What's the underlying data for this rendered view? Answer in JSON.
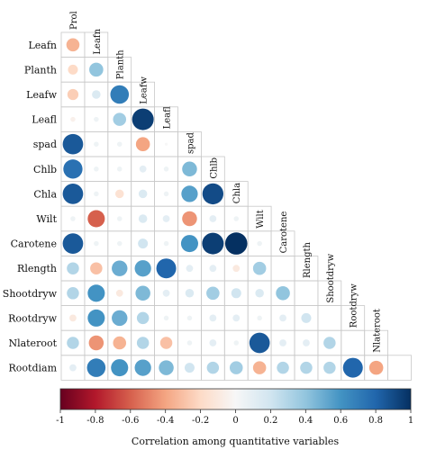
{
  "chart_data": {
    "type": "heatmap",
    "variables": [
      "Prol",
      "Leafn",
      "Planth",
      "Leafw",
      "Leafl",
      "spad",
      "Chlb",
      "Chla",
      "Wilt",
      "Carotene",
      "Rlength",
      "Shootdryw",
      "Rootdryw",
      "Nlateroot",
      "Rootdiam"
    ],
    "row_labels": [
      "Leafn",
      "Planth",
      "Leafw",
      "Leafl",
      "spad",
      "Chlb",
      "Chla",
      "Wilt",
      "Carotene",
      "Rlength",
      "Shootdryw",
      "Rootdryw",
      "Nlateroot",
      "Rootdiam"
    ],
    "column_labels": [
      "Prol",
      "Leafn",
      "Planth",
      "Leafw",
      "Leafl",
      "spad",
      "Chlb",
      "Chla",
      "Wilt",
      "Carotene",
      "Rlength",
      "Shootdryw",
      "Rootdryw",
      "Nlateroot"
    ],
    "correlations": [
      [
        -0.35
      ],
      [
        -0.2,
        0.4
      ],
      [
        -0.25,
        0.15,
        0.7
      ],
      [
        -0.05,
        0.05,
        0.35,
        0.95
      ],
      [
        0.85,
        0.05,
        0.05,
        -0.4,
        0.0
      ],
      [
        0.75,
        0.05,
        0.05,
        0.1,
        0.05,
        0.45
      ],
      [
        0.85,
        0.05,
        -0.15,
        0.15,
        0.05,
        0.55,
        0.9
      ],
      [
        0.05,
        -0.6,
        0.05,
        0.15,
        0.1,
        -0.45,
        0.1,
        0.05
      ],
      [
        0.85,
        0.05,
        0.05,
        0.2,
        0.05,
        0.6,
        0.95,
        1.0,
        0.05
      ],
      [
        0.3,
        -0.3,
        0.5,
        0.55,
        0.8,
        0.1,
        0.1,
        -0.1,
        0.35
      ],
      [
        0.3,
        0.6,
        -0.1,
        0.45,
        0.1,
        0.15,
        0.35,
        0.2,
        0.15,
        0.4
      ],
      [
        -0.1,
        0.6,
        0.5,
        0.3,
        0.05,
        0.05,
        0.1,
        0.1,
        0.05,
        0.1,
        0.2
      ],
      [
        0.3,
        -0.45,
        -0.35,
        0.3,
        -0.3,
        0.05,
        0.1,
        0.05,
        0.85,
        0.1,
        0.1,
        0.3
      ],
      [
        0.1,
        0.7,
        0.6,
        0.55,
        0.45,
        0.2,
        0.3,
        0.35,
        -0.35,
        0.3,
        0.3,
        0.3,
        0.8,
        -0.4
      ]
    ],
    "colorbar": {
      "range": [
        -1,
        1
      ],
      "ticks": [
        "-1",
        "-0.8",
        "-0.6",
        "-0.4",
        "-0.2",
        "0",
        "0.2",
        "0.4",
        "0.6",
        "0.8",
        "1"
      ],
      "title": "Correlation among quantitative variables",
      "colors": [
        "#67001f",
        "#b2182b",
        "#d6604d",
        "#f4a582",
        "#fddbc7",
        "#f7f7f7",
        "#d1e5f0",
        "#92c5de",
        "#4393c3",
        "#2166ac",
        "#053061"
      ]
    },
    "grid": true,
    "legend_position": "bottom"
  }
}
